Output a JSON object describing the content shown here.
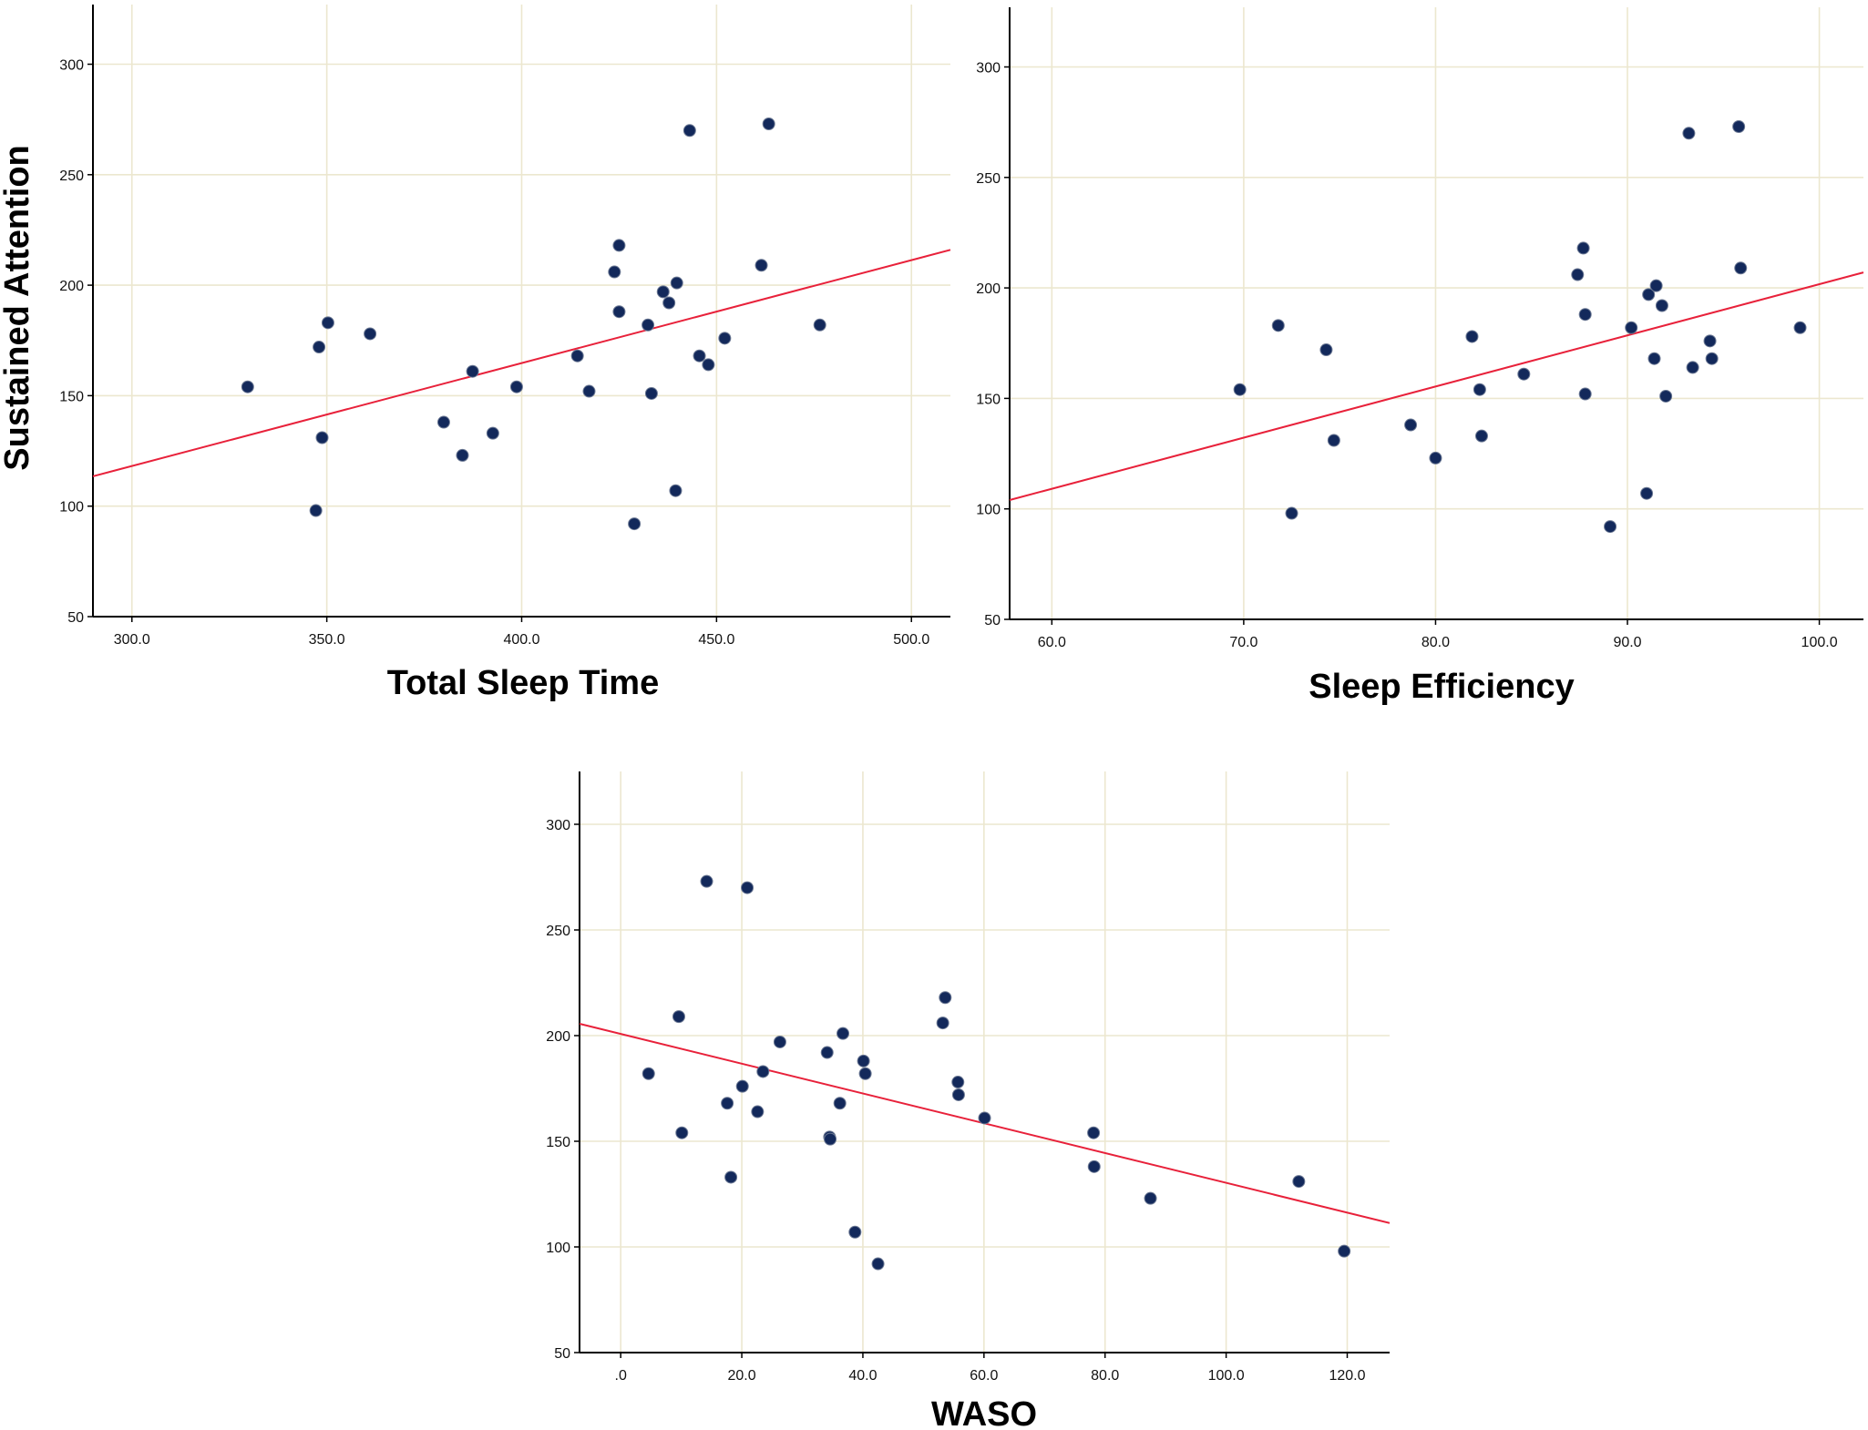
{
  "colors": {
    "point": "#13295b",
    "fit_line": "#e8213a",
    "grid": "#ece7cf",
    "axis": "#000000"
  },
  "chart_data": [
    {
      "type": "scatter",
      "id": "tst",
      "xlabel": "Total Sleep Time",
      "ylabel": "Sustained Attention",
      "xlim": [
        290,
        510
      ],
      "ylim": [
        50,
        327
      ],
      "xticks": [
        300,
        350,
        400,
        450,
        500
      ],
      "xtick_labels": [
        "300.0",
        "350.0",
        "400.0",
        "450.0",
        "500.0"
      ],
      "yticks": [
        50,
        100,
        150,
        200,
        250,
        300
      ],
      "ytick_labels": [
        "50",
        "100",
        "150",
        "200",
        "250",
        "300"
      ],
      "grid": true,
      "points": [
        [
          329.7,
          154
        ],
        [
          347.2,
          98
        ],
        [
          348.0,
          172
        ],
        [
          348.8,
          131
        ],
        [
          350.3,
          183
        ],
        [
          361.1,
          178
        ],
        [
          380.0,
          138
        ],
        [
          384.8,
          123
        ],
        [
          387.4,
          161
        ],
        [
          392.6,
          133
        ],
        [
          398.7,
          154
        ],
        [
          414.3,
          168
        ],
        [
          417.3,
          152
        ],
        [
          423.8,
          206
        ],
        [
          425.0,
          218
        ],
        [
          425.0,
          188
        ],
        [
          428.9,
          92
        ],
        [
          432.4,
          182
        ],
        [
          433.3,
          151
        ],
        [
          436.3,
          197
        ],
        [
          437.8,
          192
        ],
        [
          439.5,
          107
        ],
        [
          439.8,
          201
        ],
        [
          443.1,
          270
        ],
        [
          445.6,
          168
        ],
        [
          447.9,
          164
        ],
        [
          452.1,
          176
        ],
        [
          461.5,
          209
        ],
        [
          463.4,
          273
        ],
        [
          476.5,
          182
        ]
      ],
      "fit_line": [
        [
          290,
          113.5
        ],
        [
          510,
          216
        ]
      ]
    },
    {
      "type": "scatter",
      "id": "se",
      "xlabel": "Sleep Efficiency",
      "ylabel": "",
      "xlim": [
        57.8,
        102.3
      ],
      "ylim": [
        50,
        327
      ],
      "xticks": [
        60,
        70,
        80,
        90,
        100
      ],
      "xtick_labels": [
        "60.0",
        "70.0",
        "80.0",
        "90.0",
        "100.0"
      ],
      "yticks": [
        50,
        100,
        150,
        200,
        250,
        300
      ],
      "ytick_labels": [
        "50",
        "100",
        "150",
        "200",
        "250",
        "300"
      ],
      "grid": true,
      "points": [
        [
          69.8,
          154
        ],
        [
          71.8,
          183
        ],
        [
          72.5,
          98
        ],
        [
          74.3,
          172
        ],
        [
          74.7,
          131
        ],
        [
          78.7,
          138
        ],
        [
          80.0,
          123
        ],
        [
          81.9,
          178
        ],
        [
          82.3,
          154
        ],
        [
          82.4,
          133
        ],
        [
          84.6,
          161
        ],
        [
          87.4,
          206
        ],
        [
          87.7,
          218
        ],
        [
          87.8,
          188
        ],
        [
          87.8,
          152
        ],
        [
          89.1,
          92
        ],
        [
          90.2,
          182
        ],
        [
          91.0,
          107
        ],
        [
          91.1,
          197
        ],
        [
          91.4,
          168
        ],
        [
          91.5,
          201
        ],
        [
          91.8,
          192
        ],
        [
          92.0,
          151
        ],
        [
          93.2,
          270
        ],
        [
          93.4,
          164
        ],
        [
          94.3,
          176
        ],
        [
          94.4,
          168
        ],
        [
          95.8,
          273
        ],
        [
          95.9,
          209
        ],
        [
          99.0,
          182
        ]
      ],
      "fit_line": [
        [
          57.8,
          104
        ],
        [
          102.3,
          207
        ]
      ]
    },
    {
      "type": "scatter",
      "id": "waso",
      "xlabel": "WASO",
      "ylabel": "",
      "xlim": [
        -6.8,
        127
      ],
      "ylim": [
        50,
        325
      ],
      "xticks": [
        0,
        20,
        40,
        60,
        80,
        100,
        120
      ],
      "xtick_labels": [
        ".0",
        "20.0",
        "40.0",
        "60.0",
        "80.0",
        "100.0",
        "120.0"
      ],
      "yticks": [
        50,
        100,
        150,
        200,
        250,
        300
      ],
      "ytick_labels": [
        "50",
        "100",
        "150",
        "200",
        "250",
        "300"
      ],
      "grid": true,
      "points": [
        [
          4.6,
          182
        ],
        [
          9.6,
          209
        ],
        [
          10.1,
          154
        ],
        [
          14.2,
          273
        ],
        [
          17.6,
          168
        ],
        [
          18.2,
          133
        ],
        [
          20.1,
          176
        ],
        [
          20.9,
          270
        ],
        [
          22.6,
          164
        ],
        [
          23.5,
          183
        ],
        [
          26.3,
          197
        ],
        [
          34.1,
          192
        ],
        [
          34.5,
          152
        ],
        [
          34.6,
          151
        ],
        [
          36.2,
          168
        ],
        [
          36.7,
          201
        ],
        [
          38.7,
          107
        ],
        [
          40.1,
          188
        ],
        [
          40.4,
          182
        ],
        [
          42.5,
          92
        ],
        [
          53.2,
          206
        ],
        [
          53.6,
          218
        ],
        [
          55.7,
          178
        ],
        [
          55.8,
          172
        ],
        [
          60.1,
          161
        ],
        [
          78.1,
          154
        ],
        [
          78.2,
          138
        ],
        [
          87.5,
          123
        ],
        [
          112.0,
          131
        ],
        [
          119.5,
          98
        ]
      ],
      "fit_line": [
        [
          -6.8,
          205.6
        ],
        [
          127,
          111.3
        ]
      ]
    }
  ]
}
